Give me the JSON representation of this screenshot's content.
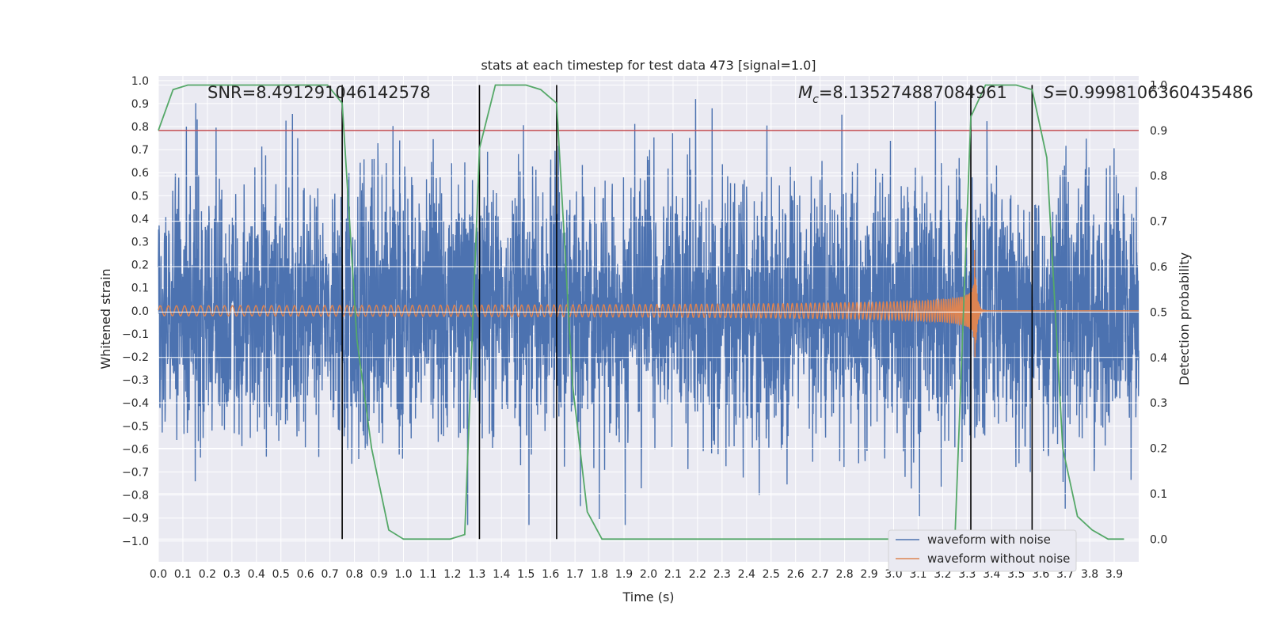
{
  "chart_data": {
    "type": "line",
    "title": "stats at each timestep for test data 473 [signal=1.0]",
    "xlabel": "Time (s)",
    "ylabel_left": "Whitened strain",
    "ylabel_right": "Detection probability",
    "xlim": [
      0.0,
      4.0
    ],
    "ylim_left": [
      -1.09,
      1.02
    ],
    "ylim_right": [
      -0.05,
      1.02
    ],
    "x_ticks": [
      "0.0",
      "0.1",
      "0.2",
      "0.3",
      "0.4",
      "0.5",
      "0.6",
      "0.7",
      "0.8",
      "0.9",
      "1.0",
      "1.1",
      "1.2",
      "1.3",
      "1.4",
      "1.5",
      "1.6",
      "1.7",
      "1.8",
      "1.9",
      "2.0",
      "2.1",
      "2.2",
      "2.3",
      "2.4",
      "2.5",
      "2.6",
      "2.7",
      "2.8",
      "2.9",
      "3.0",
      "3.1",
      "3.2",
      "3.3",
      "3.4",
      "3.5",
      "3.6",
      "3.7",
      "3.8",
      "3.9"
    ],
    "y_ticks_left": [
      "1.0",
      "0.9",
      "0.8",
      "0.7",
      "0.6",
      "0.5",
      "0.4",
      "0.3",
      "0.2",
      "0.1",
      "0.0",
      "−0.1",
      "−0.2",
      "−0.3",
      "−0.4",
      "−0.5",
      "−0.6",
      "−0.7",
      "−0.8",
      "−0.9",
      "−1.0"
    ],
    "y_ticks_right": [
      "1.0",
      "0.9",
      "0.8",
      "0.7",
      "0.6",
      "0.5",
      "0.4",
      "0.3",
      "0.2",
      "0.1",
      "0.0"
    ],
    "grid": true,
    "annotations": {
      "snr": "SNR=8.491291046142578",
      "mc_symbol": "M",
      "mc_sub": "c",
      "mc_value": "=8.135274887084961",
      "s_symbol": "S",
      "s_value": "=0.9998106360435486"
    },
    "threshold": {
      "value": 0.9,
      "color": "#c44e52"
    },
    "vertical_markers": [
      0.75,
      1.31,
      1.625,
      3.315,
      3.565
    ],
    "noise_series": {
      "name": "waveform with noise",
      "color": "#4c72b0",
      "duration": 4.0,
      "typical_amplitude": 0.28,
      "max": 0.92,
      "min": -0.93
    },
    "signal_series": {
      "name": "waveform without noise",
      "color": "#dd8452",
      "f_start": 30,
      "merger_time": 3.33,
      "amplitude_start": 0.022,
      "amplitude_peak": 0.3
    },
    "probability_series": {
      "color": "#55a868",
      "x": [
        0.0,
        0.06,
        0.12,
        0.3,
        0.69,
        0.75,
        0.81,
        0.87,
        0.94,
        1.0,
        1.19,
        1.25,
        1.31,
        1.375,
        1.44,
        1.5,
        1.56,
        1.625,
        1.69,
        1.75,
        1.81,
        1.875,
        3.25,
        3.315,
        3.375,
        3.44,
        3.5,
        3.565,
        3.625,
        3.69,
        3.75,
        3.81,
        3.875,
        3.94
      ],
      "y": [
        0.9,
        0.99,
        1.0,
        1.0,
        1.0,
        0.96,
        0.44,
        0.2,
        0.02,
        0.0,
        0.0,
        0.01,
        0.86,
        1.0,
        1.0,
        1.0,
        0.99,
        0.96,
        0.34,
        0.06,
        0.0,
        0.0,
        0.0,
        0.93,
        1.0,
        1.0,
        1.0,
        0.99,
        0.84,
        0.2,
        0.05,
        0.02,
        0.0,
        0.0
      ]
    },
    "legend": {
      "position": "lower-right",
      "entries": [
        "waveform with noise",
        "waveform without noise"
      ]
    }
  }
}
